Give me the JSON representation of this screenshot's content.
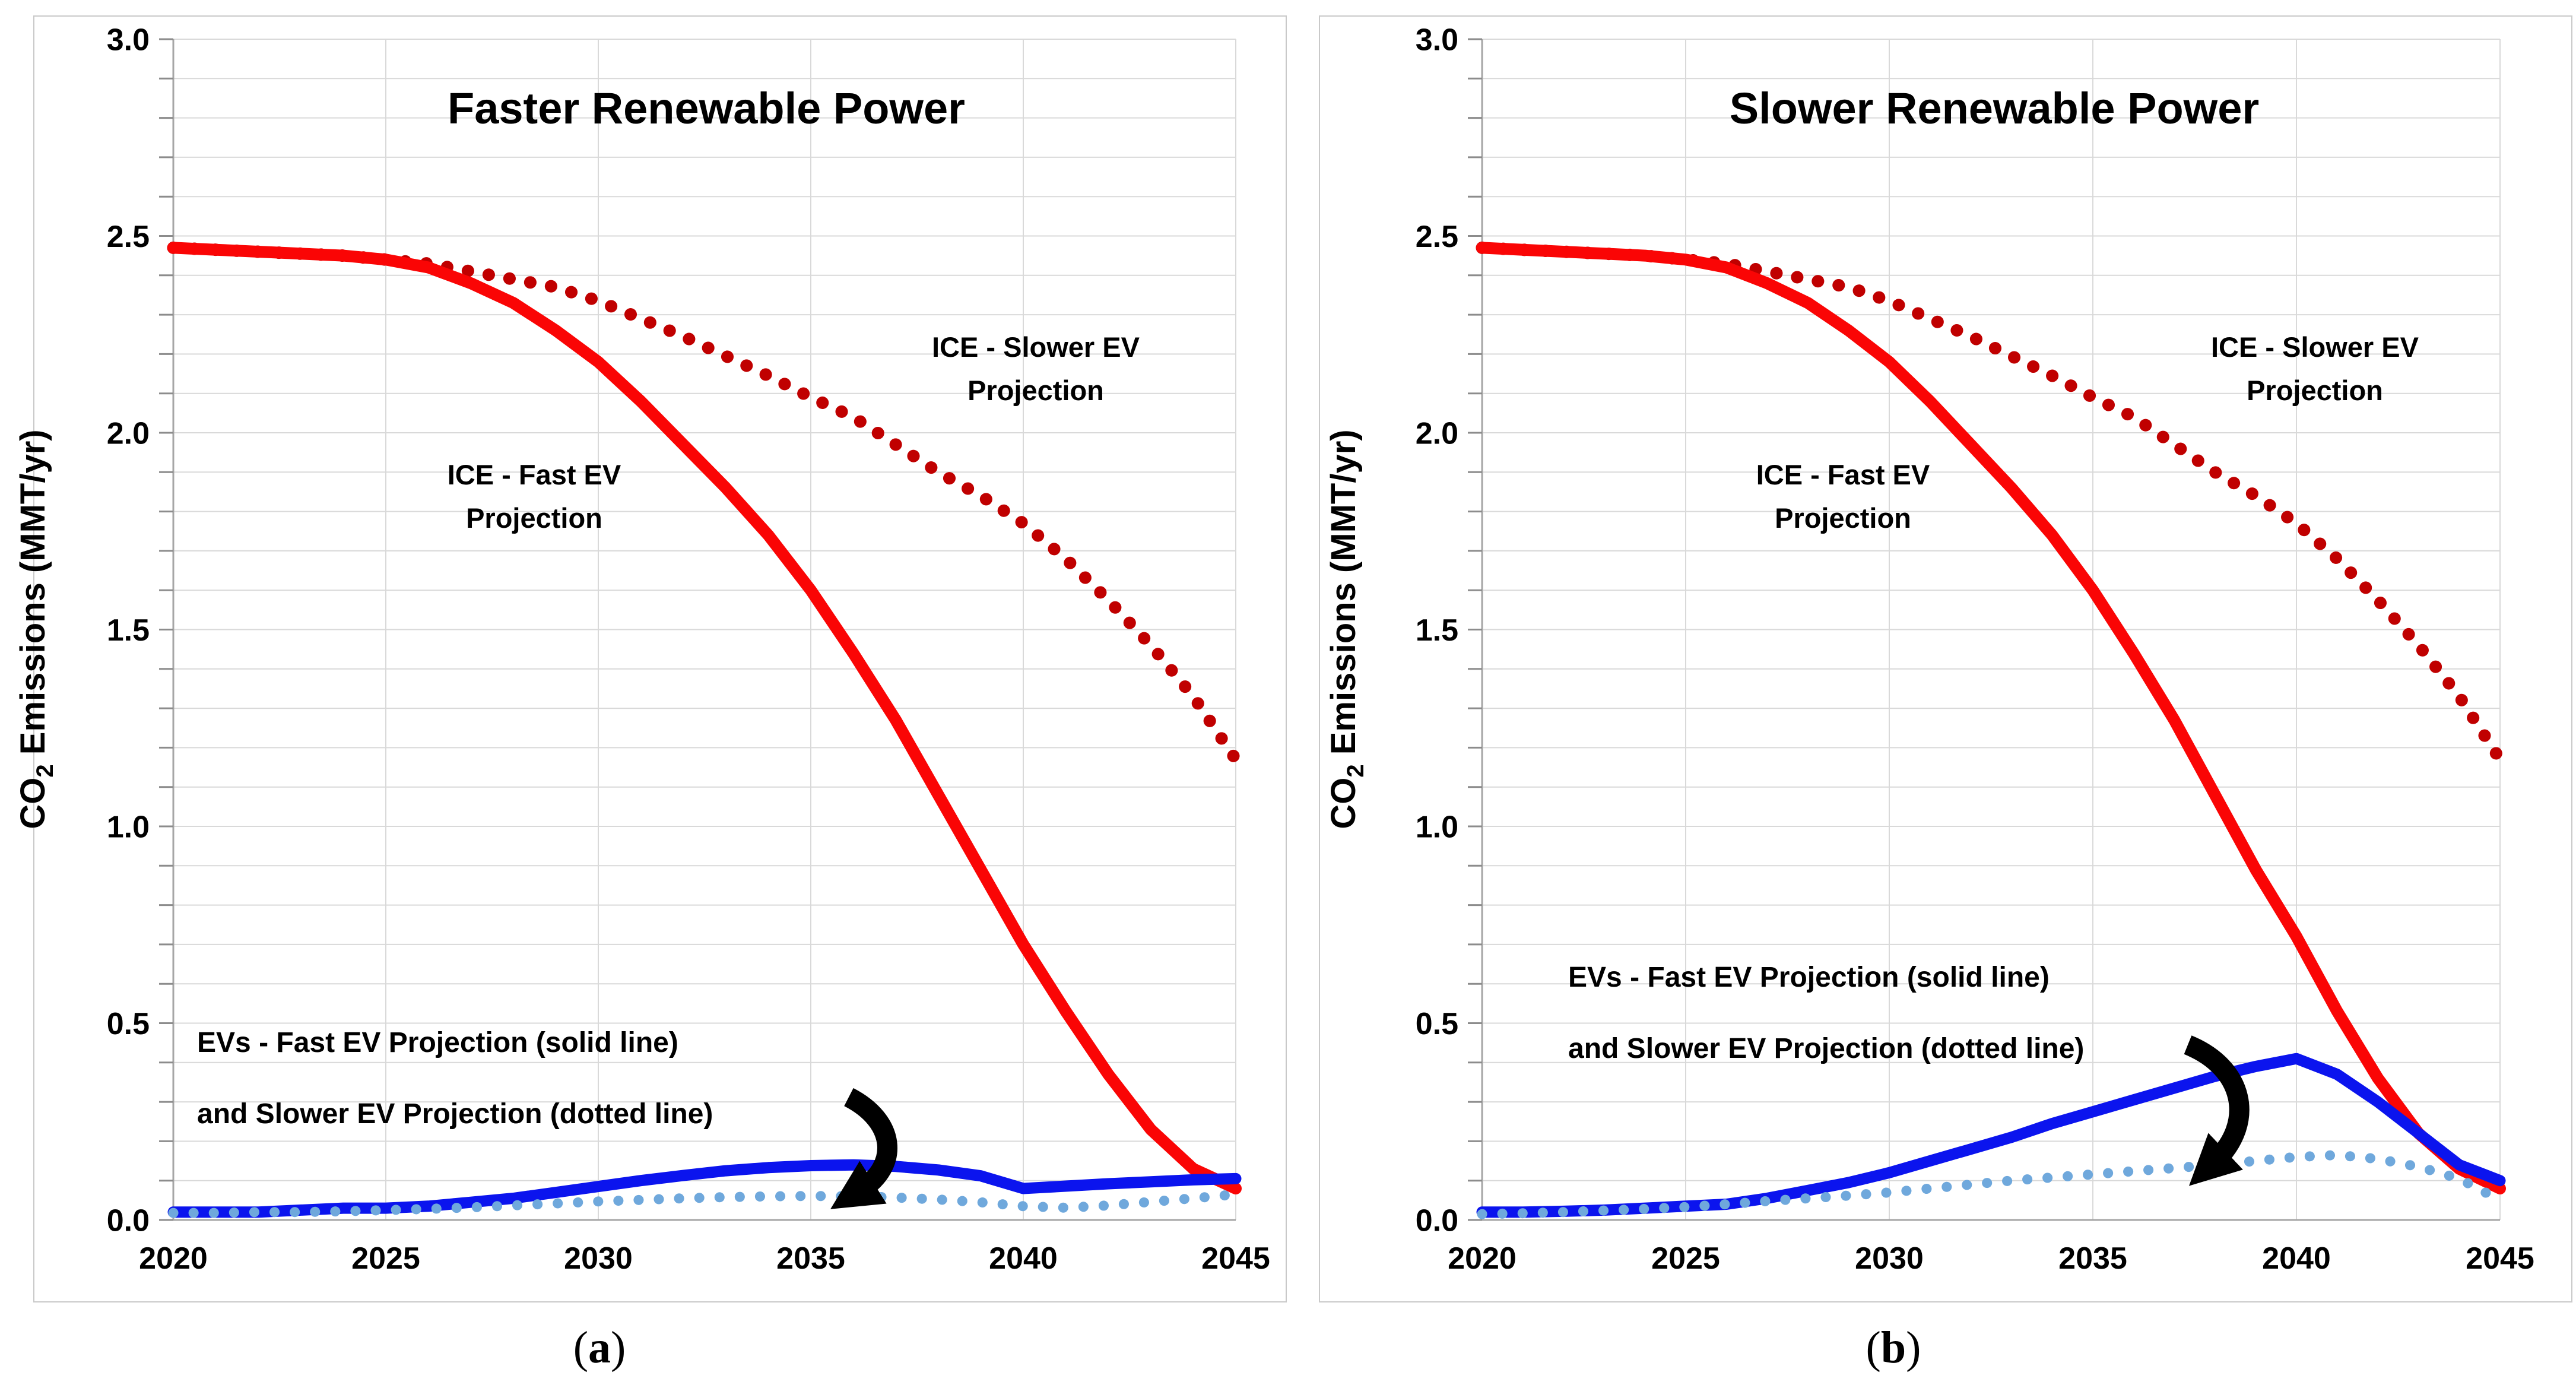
{
  "figure": {
    "background": "#FFFFFF"
  },
  "colors": {
    "ice_fast": "#FA0505",
    "ice_slow": "#C00000",
    "ev_fast": "#0B14EE",
    "ev_slow": "#6FA8DC",
    "gridline": "#D9D9D9",
    "axis": "#A6A6A6",
    "tick": "#8C8C8C",
    "text": "#000000",
    "panel_border": "#C9C9C9",
    "arrow": "#000000"
  },
  "y_axis": {
    "title_main": "CO",
    "title_sub": "2",
    "title_rest": " Emissions (MMT/yr)",
    "tick_labels": [
      "3.0",
      "2.5",
      "2.0",
      "1.5",
      "1.0",
      "0.5",
      "0.0"
    ],
    "min": 0.0,
    "max": 3.0,
    "major_step": 0.5,
    "minor_step": 0.1
  },
  "x_axis": {
    "tick_labels": [
      "2020",
      "2025",
      "2030",
      "2035",
      "2040",
      "2045"
    ],
    "min": 2020,
    "max": 2045
  },
  "charts": [
    {
      "key": "a",
      "title": "Faster Renewable Power",
      "caption_open": "(",
      "caption_letter": "a",
      "caption_close": ")",
      "labels": {
        "ice_fast_line1": "ICE - Fast EV",
        "ice_fast_line2": "Projection",
        "ice_slow_line1": "ICE - Slower EV",
        "ice_slow_line2": "Projection",
        "ev_line1": "EVs - Fast EV Projection (solid line)",
        "ev_line2": "and Slower EV Projection (dotted line)"
      }
    },
    {
      "key": "b",
      "title": "Slower Renewable Power",
      "caption_open": "(",
      "caption_letter": "b",
      "caption_close": ")",
      "labels": {
        "ice_fast_line1": "ICE - Fast EV",
        "ice_fast_line2": "Projection",
        "ice_slow_line1": "ICE - Slower EV",
        "ice_slow_line2": "Projection",
        "ev_line1": "EVs - Fast EV Projection (solid line)",
        "ev_line2": "and Slower EV Projection (dotted line)"
      }
    }
  ],
  "chart_data": [
    {
      "type": "line",
      "title": "Faster Renewable Power",
      "xlabel": "",
      "ylabel": "CO2 Emissions (MMT/yr)",
      "x_start": 2020,
      "x_step": 1,
      "x_end": 2045,
      "ylim": [
        0.0,
        3.0
      ],
      "grid": "minor 0.1 horizontal, 5-year vertical",
      "legend_position": "in-plot text annotations",
      "series": [
        {
          "name": "ICE - Slower EV Projection",
          "style": "dotted",
          "color": "#C00000",
          "values": [
            2.47,
            2.465,
            2.46,
            2.455,
            2.45,
            2.44,
            2.43,
            2.41,
            2.39,
            2.37,
            2.335,
            2.29,
            2.245,
            2.195,
            2.145,
            2.09,
            2.04,
            1.97,
            1.9,
            1.84,
            1.77,
            1.68,
            1.575,
            1.46,
            1.33,
            1.17
          ]
        },
        {
          "name": "ICE - Fast EV Projection",
          "style": "solid",
          "color": "#FA0505",
          "values": [
            2.47,
            2.465,
            2.46,
            2.455,
            2.45,
            2.44,
            2.42,
            2.38,
            2.33,
            2.26,
            2.18,
            2.08,
            1.97,
            1.86,
            1.74,
            1.6,
            1.44,
            1.27,
            1.08,
            0.89,
            0.7,
            0.53,
            0.37,
            0.23,
            0.13,
            0.08
          ]
        },
        {
          "name": "EVs - Fast EV Projection",
          "style": "solid",
          "color": "#0B14EE",
          "values": [
            0.02,
            0.02,
            0.02,
            0.025,
            0.03,
            0.03,
            0.035,
            0.045,
            0.055,
            0.07,
            0.085,
            0.1,
            0.113,
            0.125,
            0.133,
            0.138,
            0.14,
            0.136,
            0.127,
            0.112,
            0.08,
            0.086,
            0.092,
            0.097,
            0.102,
            0.105
          ]
        },
        {
          "name": "EVs - Slower EV Projection",
          "style": "dotted",
          "color": "#6FA8DC",
          "values": [
            0.018,
            0.018,
            0.02,
            0.02,
            0.022,
            0.025,
            0.028,
            0.032,
            0.037,
            0.042,
            0.047,
            0.051,
            0.055,
            0.058,
            0.06,
            0.061,
            0.06,
            0.057,
            0.052,
            0.045,
            0.035,
            0.031,
            0.037,
            0.046,
            0.055,
            0.065
          ]
        }
      ]
    },
    {
      "type": "line",
      "title": "Slower Renewable Power",
      "xlabel": "",
      "ylabel": "CO2 Emissions (MMT/yr)",
      "x_start": 2020,
      "x_step": 1,
      "x_end": 2045,
      "ylim": [
        0.0,
        3.0
      ],
      "grid": "minor 0.1 horizontal, 5-year vertical",
      "legend_position": "in-plot text annotations",
      "series": [
        {
          "name": "ICE - Slower EV Projection",
          "style": "dotted",
          "color": "#C00000",
          "values": [
            2.47,
            2.465,
            2.46,
            2.455,
            2.45,
            2.44,
            2.43,
            2.41,
            2.39,
            2.37,
            2.335,
            2.29,
            2.245,
            2.195,
            2.145,
            2.09,
            2.04,
            1.97,
            1.9,
            1.84,
            1.77,
            1.68,
            1.575,
            1.46,
            1.33,
            1.17
          ]
        },
        {
          "name": "ICE - Fast EV Projection",
          "style": "solid",
          "color": "#FA0505",
          "values": [
            2.47,
            2.465,
            2.46,
            2.455,
            2.45,
            2.44,
            2.42,
            2.38,
            2.33,
            2.26,
            2.18,
            2.08,
            1.97,
            1.86,
            1.74,
            1.6,
            1.44,
            1.27,
            1.08,
            0.89,
            0.72,
            0.53,
            0.36,
            0.22,
            0.13,
            0.08
          ]
        },
        {
          "name": "EVs - Fast EV Projection",
          "style": "solid",
          "color": "#0B14EE",
          "values": [
            0.02,
            0.02,
            0.022,
            0.025,
            0.03,
            0.035,
            0.04,
            0.055,
            0.075,
            0.095,
            0.12,
            0.15,
            0.18,
            0.21,
            0.245,
            0.275,
            0.305,
            0.335,
            0.365,
            0.39,
            0.41,
            0.37,
            0.3,
            0.22,
            0.14,
            0.1
          ]
        },
        {
          "name": "EVs - Slower EV Projection",
          "style": "dotted",
          "color": "#6FA8DC",
          "values": [
            0.015,
            0.017,
            0.02,
            0.024,
            0.028,
            0.033,
            0.04,
            0.048,
            0.055,
            0.062,
            0.07,
            0.08,
            0.09,
            0.1,
            0.108,
            0.116,
            0.124,
            0.132,
            0.14,
            0.15,
            0.16,
            0.165,
            0.155,
            0.135,
            0.105,
            0.05
          ]
        }
      ]
    }
  ]
}
